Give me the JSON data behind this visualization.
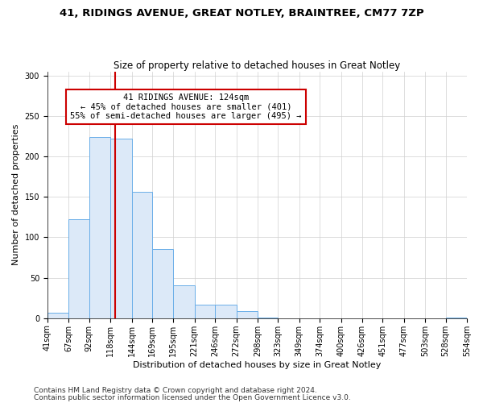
{
  "title1": "41, RIDINGS AVENUE, GREAT NOTLEY, BRAINTREE, CM77 7ZP",
  "title2": "Size of property relative to detached houses in Great Notley",
  "xlabel": "Distribution of detached houses by size in Great Notley",
  "ylabel": "Number of detached properties",
  "bin_edges": [
    41,
    67,
    92,
    118,
    144,
    169,
    195,
    221,
    246,
    272,
    298,
    323,
    349,
    374,
    400,
    426,
    451,
    477,
    503,
    528,
    554
  ],
  "bar_heights": [
    7,
    122,
    224,
    222,
    156,
    85,
    41,
    17,
    17,
    9,
    1,
    0,
    0,
    0,
    0,
    0,
    0,
    0,
    0,
    1
  ],
  "bar_color": "#dce9f8",
  "bar_edge_color": "#6aaee8",
  "property_size": 124,
  "red_line_color": "#cc0000",
  "annotation_text": "41 RIDINGS AVENUE: 124sqm\n← 45% of detached houses are smaller (401)\n55% of semi-detached houses are larger (495) →",
  "annotation_box_color": "#ffffff",
  "annotation_box_edge": "#cc0000",
  "ylim": [
    0,
    305
  ],
  "yticks": [
    0,
    50,
    100,
    150,
    200,
    250,
    300
  ],
  "footnote1": "Contains HM Land Registry data © Crown copyright and database right 2024.",
  "footnote2": "Contains public sector information licensed under the Open Government Licence v3.0.",
  "bg_color": "#ffffff",
  "grid_color": "#d0d0d0",
  "title1_fontsize": 9.5,
  "title2_fontsize": 8.5,
  "xlabel_fontsize": 8,
  "ylabel_fontsize": 8,
  "tick_fontsize": 7,
  "annotation_fontsize": 7.5,
  "footnote_fontsize": 6.5
}
